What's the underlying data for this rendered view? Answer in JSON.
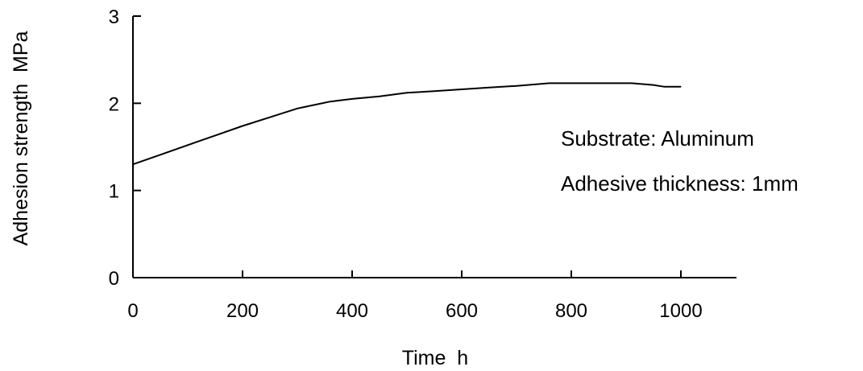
{
  "chart_data": {
    "type": "line",
    "title": "",
    "xlabel": "Time  h",
    "ylabel": "Adhesion strength  MPa",
    "xlim": [
      0,
      1100
    ],
    "ylim": [
      0,
      3
    ],
    "x_ticks": [
      0,
      200,
      400,
      600,
      800,
      1000
    ],
    "x_tick_labels": [
      "0",
      "200",
      "400",
      "600",
      "800",
      "1000"
    ],
    "y_ticks": [
      0,
      1,
      2,
      3
    ],
    "y_tick_labels": [
      "0",
      "1",
      "2",
      "3"
    ],
    "grid": false,
    "legend": "none",
    "line_color": "#000000",
    "series": [
      {
        "x": [
          0,
          50,
          100,
          150,
          200,
          250,
          300,
          330,
          360,
          400,
          450,
          500,
          550,
          600,
          650,
          700,
          760,
          800,
          850,
          910,
          950,
          970,
          1000
        ],
        "y": [
          1.3,
          1.41,
          1.52,
          1.63,
          1.74,
          1.84,
          1.94,
          1.98,
          2.02,
          2.05,
          2.08,
          2.12,
          2.14,
          2.16,
          2.18,
          2.2,
          2.23,
          2.23,
          2.23,
          2.23,
          2.21,
          2.19,
          2.19
        ]
      }
    ],
    "annotations": [
      "Substrate: Aluminum",
      "Adhesive thickness: 1mm"
    ]
  }
}
